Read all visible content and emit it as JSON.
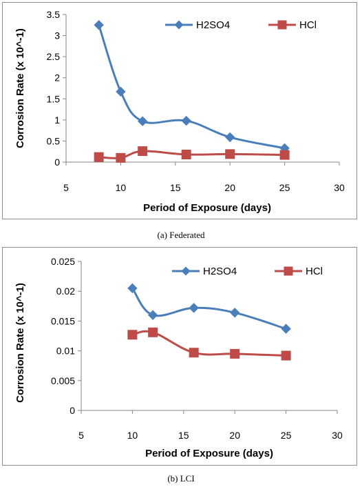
{
  "chart_data": [
    {
      "type": "line",
      "title": "",
      "xlabel": "Period of Exposure (days)",
      "ylabel": "Corrosion Rate (x 10^-1)",
      "xlim": [
        5,
        30
      ],
      "ylim": [
        0,
        3.5
      ],
      "xticks": [
        "5",
        "10",
        "15",
        "20",
        "25",
        "30"
      ],
      "yticks": [
        "0",
        "0.5",
        "1",
        "1.5",
        "2",
        "2.5",
        "3",
        "3.5"
      ],
      "grid": false,
      "legend": "top-right",
      "series": [
        {
          "name": "H2SO4",
          "color": "#4a7ebb",
          "marker": "diamond",
          "x": [
            8,
            10,
            12,
            16,
            20,
            25
          ],
          "y": [
            3.25,
            1.67,
            0.97,
            0.98,
            0.59,
            0.33
          ]
        },
        {
          "name": "HCl",
          "color": "#be4b48",
          "marker": "square",
          "x": [
            8,
            10,
            12,
            16,
            20,
            25
          ],
          "y": [
            0.12,
            0.1,
            0.26,
            0.18,
            0.19,
            0.17
          ]
        }
      ],
      "caption": "(a) Federated"
    },
    {
      "type": "line",
      "title": "",
      "xlabel": "Period of Exposure (days)",
      "ylabel": "Corrosion Rate (x 10^-1)",
      "xlim": [
        5,
        30
      ],
      "ylim": [
        0,
        0.025
      ],
      "xticks": [
        "5",
        "10",
        "15",
        "20",
        "25",
        "30"
      ],
      "yticks": [
        "0",
        "0.005",
        "0.01",
        "0.015",
        "0.02",
        "0.025"
      ],
      "grid": false,
      "legend": "top-right",
      "series": [
        {
          "name": "H2SO4",
          "color": "#4a7ebb",
          "marker": "diamond",
          "x": [
            10,
            12,
            16,
            20,
            25
          ],
          "y": [
            0.0205,
            0.016,
            0.0172,
            0.0164,
            0.0137
          ]
        },
        {
          "name": "HCl",
          "color": "#be4b48",
          "marker": "square",
          "x": [
            10,
            12,
            16,
            20,
            25
          ],
          "y": [
            0.0127,
            0.0131,
            0.0097,
            0.0095,
            0.0092
          ]
        }
      ],
      "caption": "(b) LCI"
    }
  ]
}
